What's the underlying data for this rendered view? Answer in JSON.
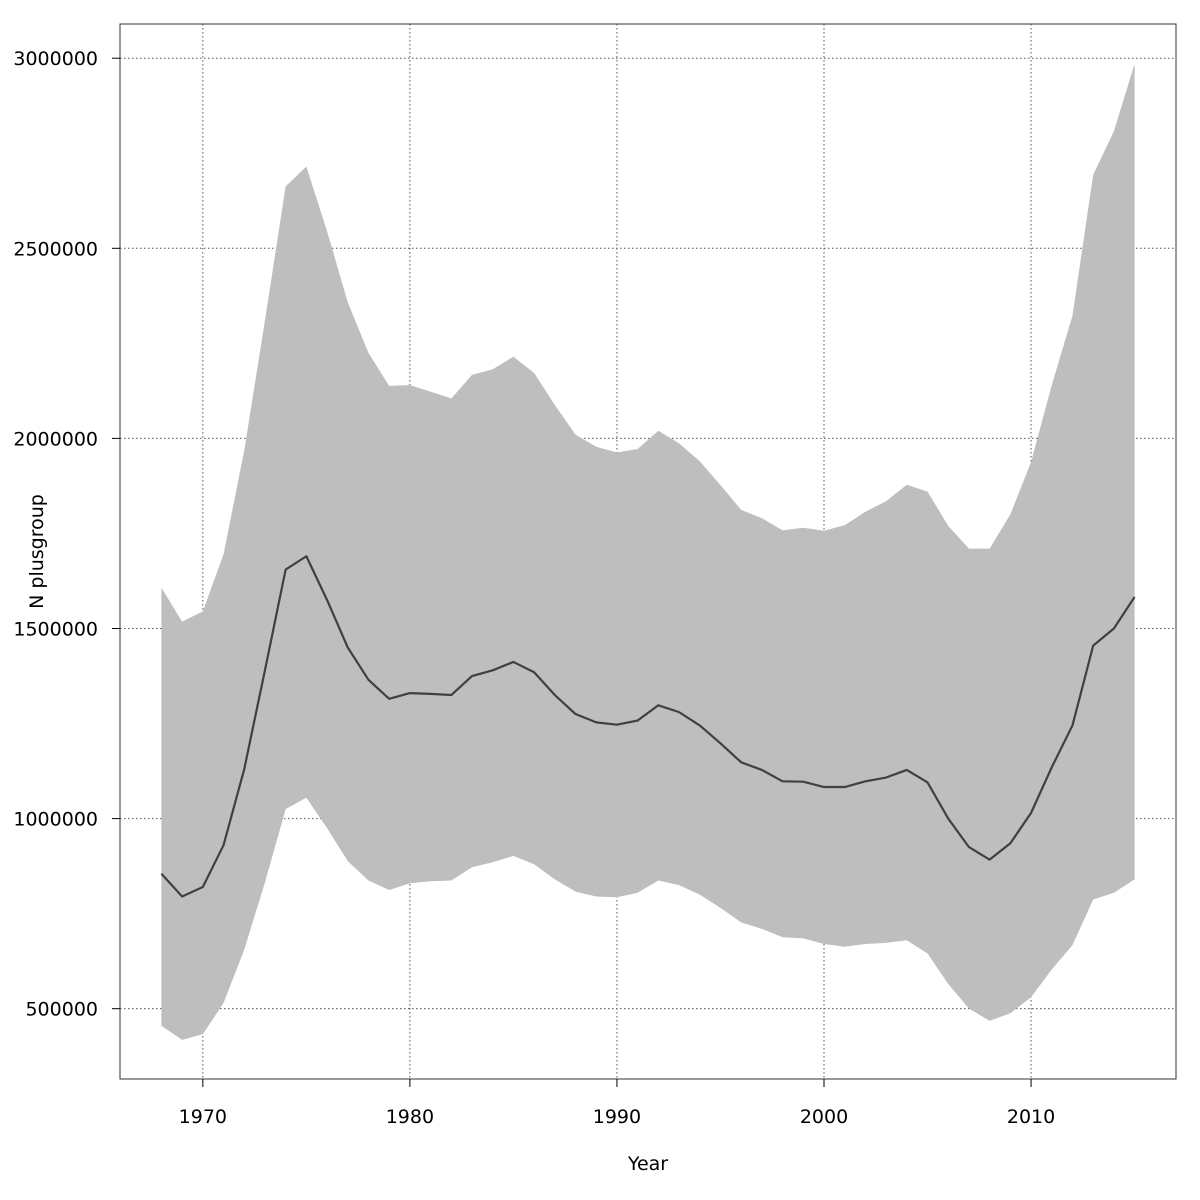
{
  "chart_data": {
    "type": "area",
    "xlabel": "Year",
    "ylabel": "N plusgroup",
    "xlim": [
      1966,
      2017
    ],
    "ylim": [
      315000,
      3090000
    ],
    "x_ticks": [
      1970,
      1980,
      1990,
      2000,
      2010
    ],
    "y_ticks": [
      500000,
      1000000,
      1500000,
      2000000,
      2500000,
      3000000
    ],
    "x_tick_labels": [
      "1970",
      "1980",
      "1990",
      "2000",
      "2010"
    ],
    "y_tick_labels": [
      "500000",
      "1000000",
      "1500000",
      "2000000",
      "2500000",
      "3000000"
    ],
    "grid": true,
    "band_color": "#bebebe",
    "line_color": "#404040",
    "x": [
      1968,
      1969,
      1970,
      1971,
      1972,
      1973,
      1974,
      1975,
      1976,
      1977,
      1978,
      1979,
      1980,
      1981,
      1982,
      1983,
      1984,
      1985,
      1986,
      1987,
      1988,
      1989,
      1990,
      1991,
      1992,
      1993,
      1994,
      1995,
      1996,
      1997,
      1998,
      1999,
      2000,
      2001,
      2002,
      2003,
      2004,
      2005,
      2006,
      2007,
      2008,
      2009,
      2010,
      2011,
      2012,
      2013,
      2014,
      2015
    ],
    "series": [
      {
        "role": "median",
        "values": [
          855000,
          795000,
          820000,
          930000,
          1130000,
          1390000,
          1655000,
          1690000,
          1575000,
          1450000,
          1365000,
          1315000,
          1330000,
          1328000,
          1325000,
          1375000,
          1390000,
          1412000,
          1385000,
          1325000,
          1275000,
          1253000,
          1247000,
          1258000,
          1298000,
          1280000,
          1245000,
          1198000,
          1148000,
          1128000,
          1098000,
          1097000,
          1083000,
          1083000,
          1098000,
          1108000,
          1128000,
          1095000,
          1000000,
          925000,
          892000,
          935000,
          1015000,
          1135000,
          1245000,
          1455000,
          1500000,
          1583000
        ]
      },
      {
        "role": "upper",
        "values": [
          1607000,
          1518000,
          1545000,
          1695000,
          1968000,
          2310000,
          2663000,
          2715000,
          2545000,
          2358000,
          2225000,
          2138000,
          2140000,
          2123000,
          2105000,
          2167000,
          2182000,
          2215000,
          2172000,
          2088000,
          2010000,
          1978000,
          1963000,
          1972000,
          2020000,
          1987000,
          1940000,
          1877000,
          1812000,
          1790000,
          1758000,
          1765000,
          1757000,
          1772000,
          1807000,
          1835000,
          1878000,
          1860000,
          1770000,
          1710000,
          1710000,
          1800000,
          1938000,
          2140000,
          2323000,
          2693000,
          2808000,
          2985000
        ]
      },
      {
        "role": "lower",
        "values": [
          455000,
          418000,
          433000,
          515000,
          655000,
          832000,
          1025000,
          1055000,
          975000,
          888000,
          837000,
          812000,
          830000,
          835000,
          837000,
          872000,
          885000,
          902000,
          880000,
          840000,
          808000,
          795000,
          793000,
          805000,
          837000,
          825000,
          800000,
          765000,
          727000,
          710000,
          688000,
          685000,
          670000,
          663000,
          670000,
          673000,
          680000,
          645000,
          565000,
          500000,
          468000,
          488000,
          530000,
          603000,
          667000,
          787000,
          805000,
          840000
        ]
      }
    ]
  }
}
